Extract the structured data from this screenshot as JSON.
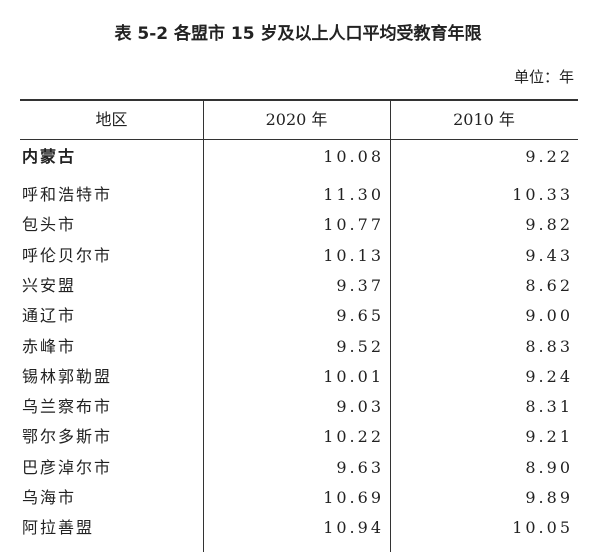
{
  "header": {
    "title": "表 5-2 各盟市 15 岁及以上人口平均受教育年限",
    "unit": "单位：年"
  },
  "table": {
    "columns": [
      "地区",
      "2020 年",
      "2010 年"
    ],
    "rows": [
      [
        "内蒙古",
        "10.08",
        "9.22"
      ],
      [
        "呼和浩特市",
        "11.30",
        "10.33"
      ],
      [
        "包头市",
        "10.77",
        "9.82"
      ],
      [
        "呼伦贝尔市",
        "10.13",
        "9.43"
      ],
      [
        "兴安盟",
        "9.37",
        "8.62"
      ],
      [
        "通辽市",
        "9.65",
        "9.00"
      ],
      [
        "赤峰市",
        "9.52",
        "8.83"
      ],
      [
        "锡林郭勒盟",
        "10.01",
        "9.24"
      ],
      [
        "乌兰察布市",
        "9.03",
        "8.31"
      ],
      [
        "鄂尔多斯市",
        "10.22",
        "9.21"
      ],
      [
        "巴彦淖尔市",
        "9.63",
        "8.90"
      ],
      [
        "乌海市",
        "10.69",
        "9.89"
      ],
      [
        "阿拉善盟",
        "10.94",
        "10.05"
      ]
    ]
  }
}
